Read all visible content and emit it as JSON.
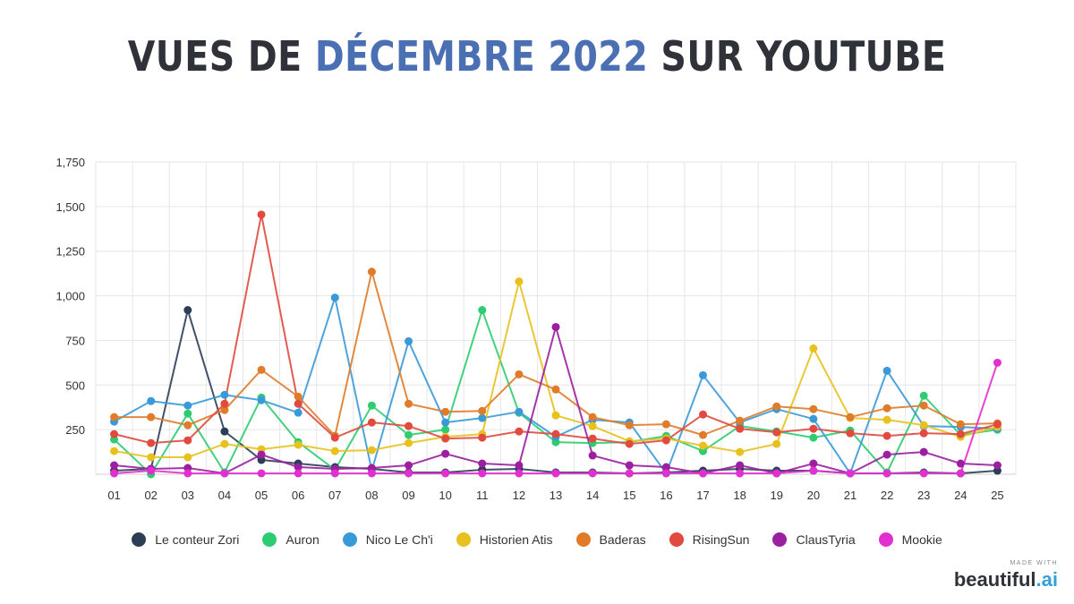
{
  "header": {
    "title_part1": "VUES DE ",
    "title_highlight": "DÉCEMBRE 2022",
    "title_part2": " SUR YOUTUBE"
  },
  "branding": {
    "made_with": "MADE WITH",
    "name": "beautiful",
    "accent": ".ai"
  },
  "colors": {
    "title_highlight": "#4a6fb2",
    "grid": "#e6e6e6"
  },
  "chart_data": {
    "type": "line",
    "title": "VUES DE DÉCEMBRE 2022 SUR YOUTUBE",
    "xlabel": "",
    "ylabel": "",
    "ylim": [
      0,
      1750
    ],
    "yticks": [
      250,
      500,
      750,
      1000,
      1250,
      1500,
      1750
    ],
    "ytick_labels": [
      "250",
      "500",
      "750",
      "1,000",
      "1,250",
      "1,500",
      "1,750"
    ],
    "grid": true,
    "legend_position": "bottom",
    "categories": [
      "01",
      "02",
      "03",
      "04",
      "05",
      "06",
      "07",
      "08",
      "09",
      "10",
      "11",
      "12",
      "13",
      "14",
      "15",
      "16",
      "17",
      "18",
      "19",
      "20",
      "21",
      "22",
      "23",
      "24",
      "25"
    ],
    "series": [
      {
        "name": "Le conteur Zori",
        "color": "#2c3e56",
        "values": [
          20,
          30,
          920,
          240,
          80,
          60,
          40,
          30,
          10,
          10,
          25,
          30,
          10,
          10,
          5,
          10,
          20,
          30,
          20,
          20,
          5,
          5,
          10,
          5,
          20
        ]
      },
      {
        "name": "Auron",
        "color": "#2ecc71",
        "values": [
          195,
          0,
          340,
          10,
          430,
          180,
          25,
          385,
          220,
          250,
          920,
          345,
          180,
          175,
          180,
          215,
          130,
          270,
          240,
          205,
          245,
          10,
          440,
          220,
          250
        ]
      },
      {
        "name": "Nico Le Ch'i",
        "color": "#3a9ad9",
        "values": [
          295,
          410,
          385,
          445,
          415,
          345,
          990,
          20,
          745,
          290,
          315,
          350,
          210,
          305,
          290,
          5,
          555,
          290,
          365,
          310,
          5,
          580,
          270,
          265,
          255
        ]
      },
      {
        "name": "Historien Atis",
        "color": "#e8c11e",
        "values": [
          130,
          95,
          95,
          170,
          140,
          165,
          130,
          135,
          175,
          210,
          225,
          1080,
          330,
          270,
          185,
          200,
          160,
          125,
          170,
          705,
          315,
          305,
          275,
          210,
          265
        ]
      },
      {
        "name": "Baderas",
        "color": "#e07b2a",
        "values": [
          320,
          320,
          275,
          360,
          585,
          435,
          215,
          1135,
          395,
          350,
          355,
          560,
          475,
          320,
          275,
          280,
          220,
          300,
          380,
          365,
          320,
          370,
          385,
          280,
          285
        ]
      },
      {
        "name": "RisingSun",
        "color": "#e04a3f",
        "values": [
          225,
          175,
          190,
          395,
          1455,
          395,
          205,
          290,
          270,
          200,
          205,
          240,
          225,
          200,
          170,
          190,
          335,
          255,
          235,
          255,
          230,
          215,
          230,
          225,
          280
        ]
      },
      {
        "name": "ClausTyria",
        "color": "#9b1fa0",
        "values": [
          50,
          30,
          35,
          5,
          110,
          40,
          30,
          35,
          50,
          115,
          60,
          50,
          825,
          105,
          50,
          40,
          5,
          50,
          5,
          60,
          5,
          110,
          125,
          60,
          50
        ]
      },
      {
        "name": "Mookie",
        "color": "#e22fd0",
        "values": [
          5,
          20,
          5,
          5,
          5,
          5,
          5,
          5,
          5,
          5,
          5,
          5,
          5,
          5,
          5,
          5,
          5,
          5,
          5,
          20,
          5,
          5,
          5,
          5,
          625
        ]
      }
    ]
  }
}
